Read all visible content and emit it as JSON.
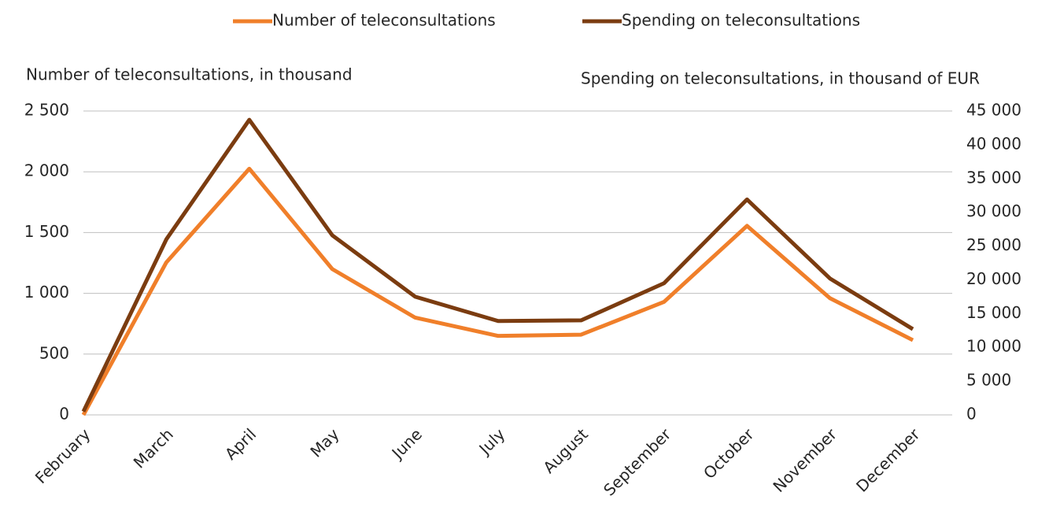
{
  "chart_data": {
    "type": "line",
    "y_label": "Number of teleconsultations, in thousand",
    "y2_label": "Spending on teleconsultations, in thousand of EUR",
    "categories": [
      "February",
      "March",
      "April",
      "May",
      "June",
      "July",
      "August",
      "September",
      "October",
      "November",
      "December"
    ],
    "series": [
      {
        "name": "Number of teleconsultations",
        "color": "#f07f2a",
        "values": [
          0,
          1255,
          2025,
          1200,
          800,
          650,
          660,
          930,
          1555,
          960,
          615
        ]
      },
      {
        "name": "Spending on teleconsultations",
        "color": "#7b3c10",
        "axis": "y2",
        "values": [
          500,
          26000,
          43700,
          26600,
          17500,
          13900,
          14000,
          19500,
          31900,
          20200,
          12700
        ]
      }
    ],
    "ylim": [
      0,
      2500
    ],
    "yticks": [
      0,
      500,
      {
        "value": 1000,
        "label": "1 000"
      },
      {
        "value": 1500,
        "label": "1 500"
      },
      {
        "value": 2000,
        "label": "2 000"
      },
      {
        "value": 2500,
        "label": "2 500"
      }
    ],
    "y2lim": [
      0,
      45000
    ],
    "y2ticks": [
      0,
      {
        "value": 5000,
        "label": "5 000"
      },
      {
        "value": 10000,
        "label": "10 000"
      },
      {
        "value": 15000,
        "label": "15 000"
      },
      {
        "value": 20000,
        "label": "20 000"
      },
      {
        "value": 25000,
        "label": "25 000"
      },
      {
        "value": 30000,
        "label": "30 000"
      },
      {
        "value": 35000,
        "label": "35 000"
      },
      {
        "value": 40000,
        "label": "40 000"
      },
      {
        "value": 45000,
        "label": "45 000"
      }
    ],
    "grid": true,
    "legend": "top"
  }
}
